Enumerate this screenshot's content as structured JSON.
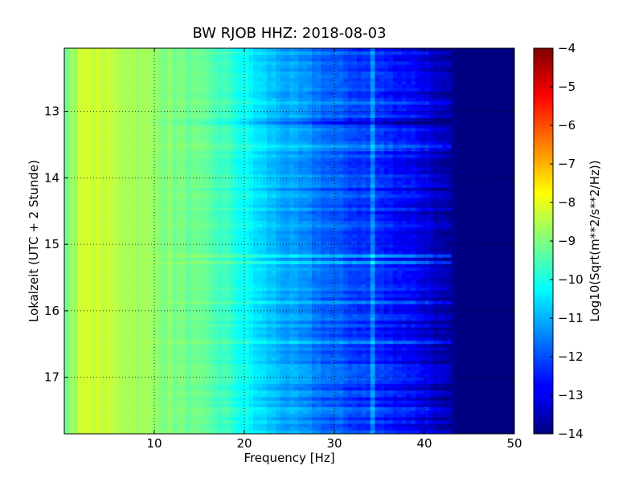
{
  "chart_data": {
    "type": "heatmap",
    "title": "BW RJOB HHZ: 2018-08-03",
    "xlabel": "Frequency [Hz]",
    "ylabel": "Lokalzeit (UTC + 2 Stunde)",
    "colorbar_label": "Log10(Sqrt(m**2/s**2/Hz))",
    "xlim": [
      0,
      50
    ],
    "ylim": [
      17.85,
      12.05
    ],
    "y_inverted": true,
    "x_ticks": [
      10,
      20,
      30,
      40,
      50
    ],
    "x_tick_labels": [
      "10",
      "20",
      "30",
      "40",
      "50"
    ],
    "y_ticks": [
      13,
      14,
      15,
      16,
      17
    ],
    "y_tick_labels": [
      "13",
      "14",
      "15",
      "16",
      "17"
    ],
    "colorbar_ticks": [
      -4,
      -5,
      -6,
      -7,
      -8,
      -9,
      -10,
      -11,
      -12,
      -13,
      -14
    ],
    "colorbar_tick_labels": [
      "−4",
      "−5",
      "−6",
      "−7",
      "−8",
      "−9",
      "−10",
      "−11",
      "−12",
      "−13",
      "−14"
    ],
    "color_range": [
      -14,
      -4
    ],
    "colormap": "jet",
    "grid": true,
    "profile": {
      "frequency_hz": [
        0,
        1,
        2,
        3,
        5,
        8,
        10,
        12,
        15,
        18,
        20,
        22,
        25,
        28,
        30,
        33,
        36,
        38,
        40,
        42,
        44,
        45,
        50
      ],
      "log10_amplitude": [
        -9.2,
        -8.6,
        -8.3,
        -8.2,
        -8.4,
        -8.6,
        -8.8,
        -9.0,
        -9.3,
        -9.7,
        -10.2,
        -10.7,
        -11.2,
        -11.6,
        -11.9,
        -12.2,
        -12.5,
        -12.7,
        -13.0,
        -13.6,
        -14.0,
        -14.0,
        -14.0
      ]
    },
    "bright_bands": [
      {
        "time": 12.9,
        "level": 0.5
      },
      {
        "time": 13.15,
        "level": -0.8
      },
      {
        "time": 13.55,
        "level": 0.6
      },
      {
        "time": 14.25,
        "level": 0.4
      },
      {
        "time": 15.17,
        "level": 1.2
      },
      {
        "time": 15.28,
        "level": 0.9
      },
      {
        "time": 15.88,
        "level": 0.8
      },
      {
        "time": 16.45,
        "level": 0.5
      },
      {
        "time": 17.25,
        "level": 0.6
      },
      {
        "time": 17.5,
        "level": 0.4
      }
    ],
    "line_feature_hz": 34.2
  }
}
